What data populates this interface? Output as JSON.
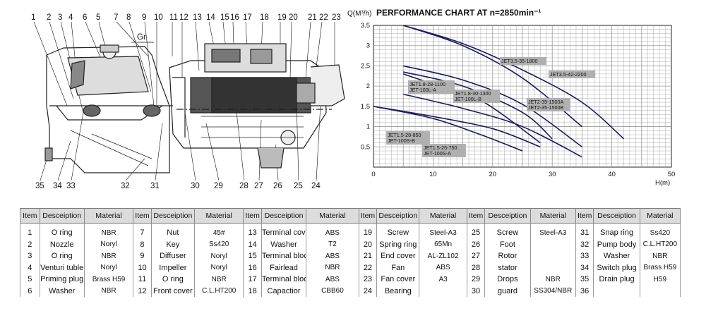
{
  "drawing": {
    "gr_label": "Gr",
    "callouts_top": [
      "1",
      "2",
      "3",
      "4",
      "6",
      "5",
      "7",
      "8",
      "9",
      "10",
      "11",
      "12",
      "13",
      "14",
      "15",
      "16",
      "17",
      "18",
      "19",
      "20",
      "21",
      "22",
      "23"
    ],
    "callouts_bottom": [
      "35",
      "34",
      "33",
      "32",
      "31",
      "30",
      "29",
      "28",
      "27",
      "26",
      "25",
      "24"
    ]
  },
  "chart": {
    "title_prefix": "Q(M³/h)",
    "title": "PERFORMANCE CHART AT n=2850min⁻¹"
  },
  "chart_data": {
    "type": "line",
    "xlabel": "H(m)",
    "ylabel": "Q(M³/h)",
    "xlim": [
      0,
      50
    ],
    "ylim": [
      0,
      3.5
    ],
    "xticks": [
      0,
      10,
      20,
      30,
      40,
      50
    ],
    "yticks": [
      0.5,
      1,
      1.5,
      2,
      2.5,
      3,
      3.5
    ],
    "grid": true,
    "series": [
      {
        "name": "JET3.5-35-1800",
        "x": [
          5,
          15,
          25,
          35
        ],
        "y": [
          3.5,
          3.0,
          2.2,
          1.0
        ]
      },
      {
        "name": "JET3.5-42-2200",
        "x": [
          5,
          15,
          25,
          35,
          42
        ],
        "y": [
          3.5,
          3.05,
          2.4,
          1.6,
          0.7
        ]
      },
      {
        "name": "JET1.8-28-1100 / JET-100L-A",
        "x": [
          5,
          10,
          18,
          28
        ],
        "y": [
          2.3,
          2.05,
          1.65,
          0.6
        ]
      },
      {
        "name": "JET1.8-30-1300 / JET-100L-B",
        "x": [
          5,
          15,
          25,
          30
        ],
        "y": [
          2.35,
          2.0,
          1.35,
          0.7
        ]
      },
      {
        "name": "JET2-35-1500A / JET2-35-1500B",
        "x": [
          5,
          15,
          25,
          35
        ],
        "y": [
          2.5,
          2.15,
          1.55,
          0.5
        ]
      },
      {
        "name": "JET1.5-28-850 / JET-100S-B",
        "x": [
          0,
          10,
          20,
          28
        ],
        "y": [
          1.5,
          1.25,
          0.95,
          0.5
        ]
      },
      {
        "name": "JET1.5-25-750 / JET-100S-A",
        "x": [
          0,
          10,
          18,
          25
        ],
        "y": [
          1.5,
          1.2,
          0.8,
          0.4
        ]
      },
      {
        "name": "",
        "x": [
          5,
          15,
          25,
          35
        ],
        "y": [
          1.8,
          1.45,
          1.0,
          0.25
        ]
      }
    ],
    "labels": [
      {
        "lines": [
          "JET3.5-35-1800"
        ]
      },
      {
        "lines": [
          "JET3.5-42-2200"
        ]
      },
      {
        "lines": [
          "JET1.8-28-1100",
          "JET-100L-A"
        ]
      },
      {
        "lines": [
          "JET1.8-30-1300",
          "JET-100L-B"
        ]
      },
      {
        "lines": [
          "JET2-35-1500A",
          "JET2-35-1500B"
        ]
      },
      {
        "lines": [
          "JET1.5-28-850",
          "JET-100S-B"
        ]
      },
      {
        "lines": [
          "JET1.5-25-750",
          "JET-100S-A"
        ]
      }
    ]
  },
  "parts_table": {
    "headers": [
      "Item",
      "Desceiption",
      "Material",
      "Item",
      "Desceiption",
      "Material",
      "Item",
      "Desceiption",
      "Material",
      "Item",
      "Desceiption",
      "Material",
      "Item",
      "Desceiption",
      "Material",
      "Item",
      "Desceiption",
      "Material"
    ],
    "rows": [
      [
        "1",
        "O ring",
        "NBR",
        "7",
        "Nut",
        "45#",
        "13",
        "Terminal cover",
        "ABS",
        "19",
        "Screw",
        "Steel-A3",
        "25",
        "Screw",
        "Steel-A3",
        "31",
        "Snap ring",
        "Ss420"
      ],
      [
        "2",
        "Nozzle",
        "Noryl",
        "8",
        "Key",
        "Ss420",
        "14",
        "Washer",
        "T2",
        "20",
        "Spring ring",
        "65Mn",
        "26",
        "Foot",
        "",
        "32",
        "Pump body",
        "C.L.HT200"
      ],
      [
        "3",
        "O ring",
        "NBR",
        "9",
        "Diffuser",
        "Noryl",
        "15",
        "Terminal block",
        "ABS",
        "21",
        "End cover",
        "AL-ZL102",
        "27",
        "Rotor",
        "",
        "33",
        "Washer",
        "NBR"
      ],
      [
        "4",
        "Venturi tuble",
        "Noryl",
        "10",
        "Impeller",
        "Noryl",
        "16",
        "Fairlead",
        "NBR",
        "22",
        "Fan",
        "ABS",
        "28",
        "stator",
        "",
        "34",
        "Switch plug",
        "Brass H59"
      ],
      [
        "5",
        "Priming plug",
        "Brass H59",
        "11",
        "O ring",
        "NBR",
        "17",
        "Terminal block",
        "ABS",
        "23",
        "Fan cover",
        "A3",
        "29",
        "Drops",
        "NBR",
        "35",
        "Drain plug",
        "H59"
      ],
      [
        "6",
        "Washer",
        "NBR",
        "12",
        "Front cover",
        "C.L.HT200",
        "18",
        "Capactior",
        "CBB60",
        "24",
        "Bearing",
        "",
        "30",
        "guard",
        "SS304/NBR",
        "36",
        "",
        ""
      ]
    ]
  },
  "colors": {
    "curve": "#1a1a60",
    "grid": "#999999",
    "label_bg": "#b0b0b0",
    "header_bg": "#dcdcdc"
  }
}
